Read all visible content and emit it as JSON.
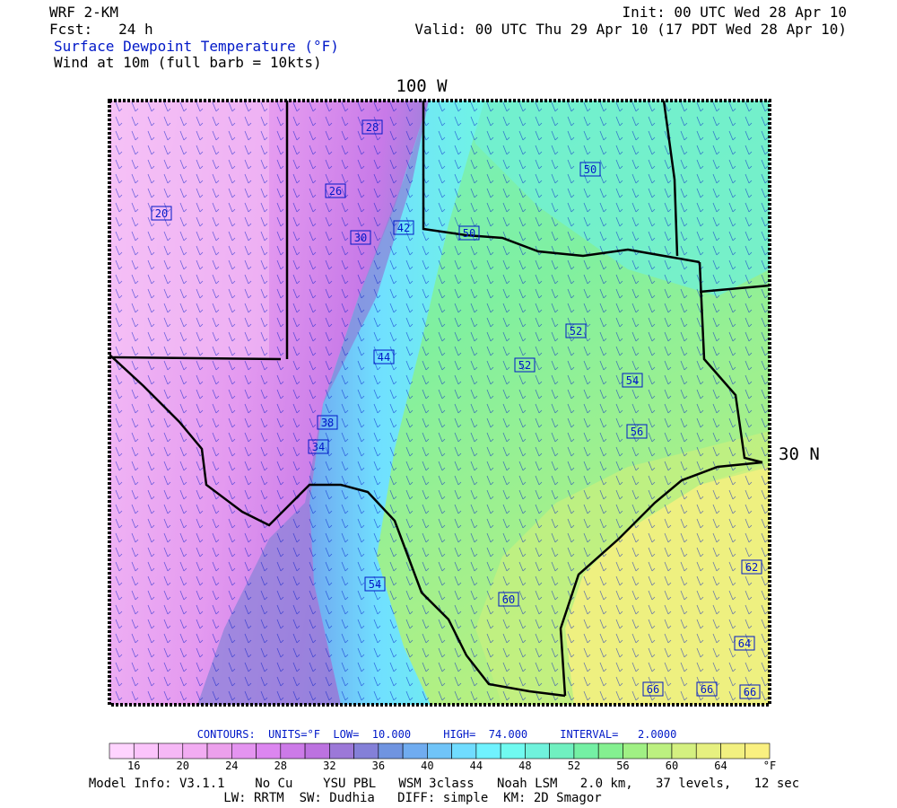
{
  "header": {
    "model": "WRF 2-KM",
    "init": "Init: 00 UTC Wed 28 Apr 10",
    "forecast": "Fcst:   24 h",
    "valid": "Valid: 00 UTC Thu 29 Apr 10 (17 PDT Wed 28 Apr 10)",
    "field": "Surface Dewpoint Temperature (°F)",
    "wind": "Wind at 10m (full barb = 10kts)"
  },
  "map": {
    "lon_label": "100 W",
    "lat_label": "30 N",
    "contour_labels": [
      "28",
      "26",
      "20",
      "30",
      "42",
      "50",
      "50",
      "44",
      "52",
      "52",
      "54",
      "56",
      "38",
      "34",
      "54",
      "60",
      "62",
      "64",
      "66",
      "66",
      "66"
    ]
  },
  "legend": {
    "contours": "CONTOURS:  UNITS=°F  LOW=  10.000     HIGH=  74.000     INTERVAL=   2.0000",
    "colors": [
      "#ffd4ff",
      "#fbc4fb",
      "#f6b8f6",
      "#f2acf2",
      "#eca0ec",
      "#e494f0",
      "#dc86f0",
      "#cc7ae8",
      "#bc72e0",
      "#9c78d8",
      "#8480d8",
      "#7094e0",
      "#70acf0",
      "#70c4f8",
      "#70dcff",
      "#70f2ff",
      "#70faf0",
      "#70f2dc",
      "#70f0c0",
      "#74f0a4",
      "#84f090",
      "#a0f084",
      "#bcf080",
      "#d4f080",
      "#e6f080",
      "#f2f080",
      "#faf080"
    ],
    "labels": [
      "16",
      "20",
      "24",
      "28",
      "32",
      "36",
      "40",
      "44",
      "48",
      "52",
      "56",
      "60",
      "64"
    ],
    "unit": "°F"
  },
  "footer": {
    "model_info": "Model Info: V3.1.1    No Cu    YSU PBL   WSM 3class   Noah LSM   2.0 km,   37 levels,   12 sec",
    "physics": "LW: RRTM  SW: Dudhia   DIFF: simple  KM: 2D Smagor"
  }
}
